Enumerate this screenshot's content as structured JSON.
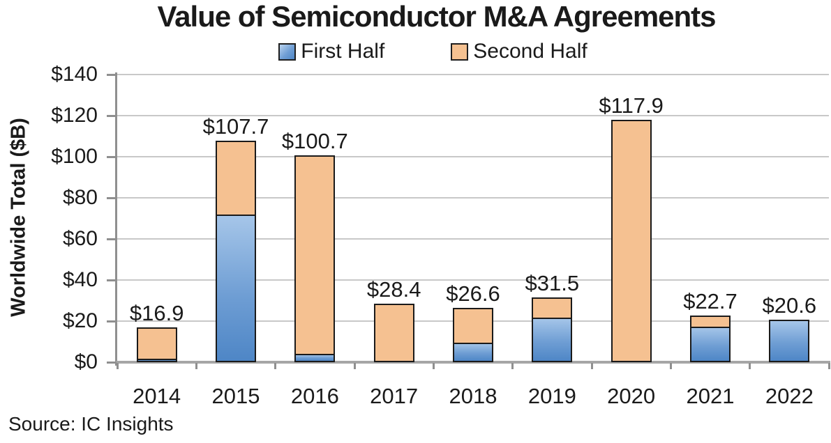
{
  "chart_data": {
    "type": "bar",
    "stacked": true,
    "title": "Value of Semiconductor M&A Agreements",
    "ylabel": "Worldwide Total ($B)",
    "source_note": "Source: IC Insights",
    "categories": [
      "2014",
      "2015",
      "2016",
      "2017",
      "2018",
      "2019",
      "2020",
      "2021",
      "2022"
    ],
    "series": [
      {
        "name": "First Half",
        "color": "#4e86c6",
        "values": [
          2.0,
          72.2,
          4.3,
          1.0,
          9.8,
          22.0,
          1.0,
          17.6,
          20.6
        ]
      },
      {
        "name": "Second Half",
        "color": "#f5c191",
        "values": [
          14.9,
          35.5,
          96.4,
          27.4,
          16.8,
          9.5,
          116.9,
          5.1,
          0.0
        ]
      }
    ],
    "totals": [
      16.9,
      107.7,
      100.7,
      28.4,
      26.6,
      31.5,
      117.9,
      22.7,
      20.6
    ],
    "total_labels": [
      "$16.9",
      "$107.7",
      "$100.7",
      "$28.4",
      "$26.6",
      "$31.5",
      "$117.9",
      "$22.7",
      "$20.6"
    ],
    "ylim": [
      0,
      140
    ],
    "ytick_step": 20,
    "ytick_labels": [
      "$0",
      "$20",
      "$40",
      "$60",
      "$80",
      "$100",
      "$120",
      "$140"
    ],
    "grid": true,
    "legend_position": "top"
  },
  "colors": {
    "first_half": "#4e86c6",
    "first_half_light": "#a6c6e9",
    "second_half": "#f5c191",
    "bar_border": "#1a1a1a",
    "gridline": "#c8c8c8",
    "axis": "#8f8f8f",
    "text": "#1a1a1a"
  }
}
